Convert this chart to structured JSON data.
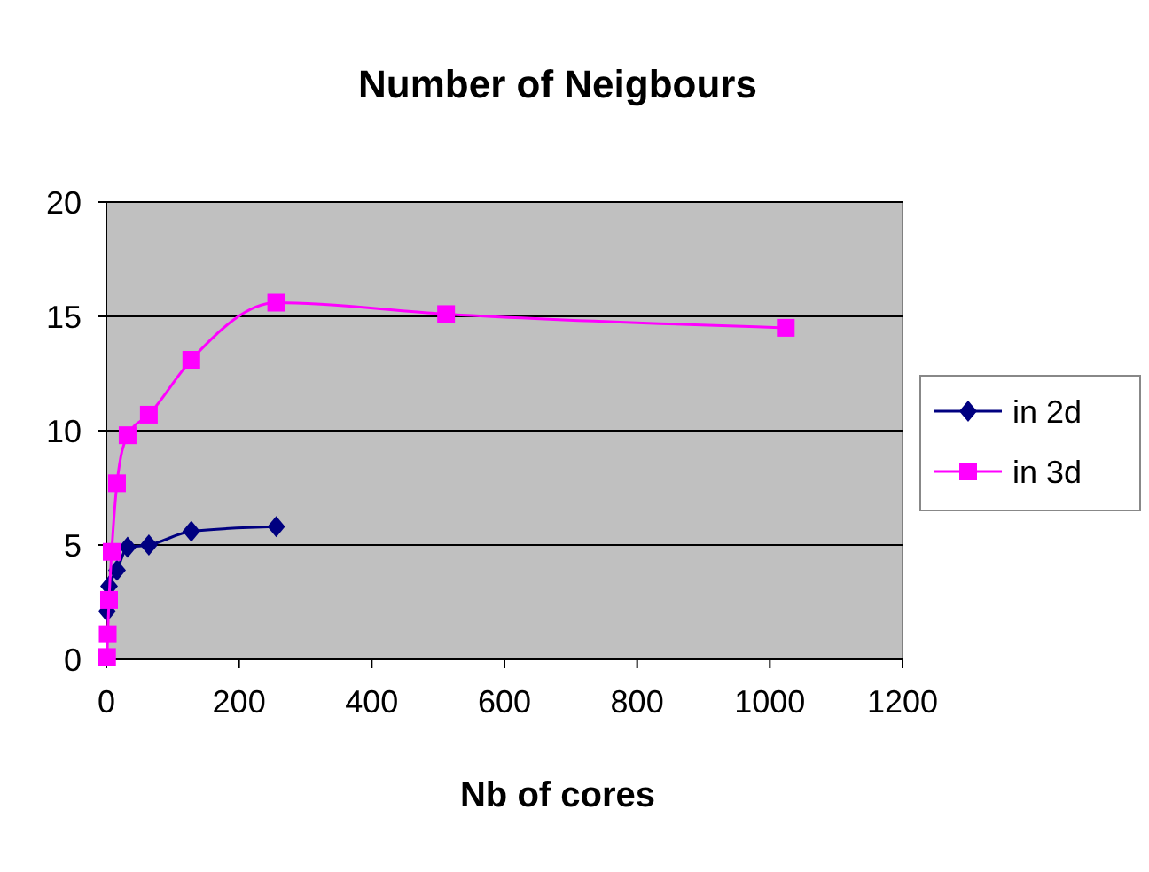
{
  "chart_data": {
    "type": "line",
    "title": "Number of Neigbours",
    "xlabel": "Nb of cores",
    "xlim": [
      0,
      1200
    ],
    "xticks": [
      0,
      200,
      400,
      600,
      800,
      1000,
      1200
    ],
    "ylim": [
      0,
      20
    ],
    "yticks": [
      0,
      5,
      10,
      15,
      20
    ],
    "grid": "y",
    "legend": "right",
    "series": [
      {
        "name": "in 2d",
        "color": "#000080",
        "marker": "diamond",
        "x": [
          1,
          4,
          16,
          32,
          64,
          128,
          256
        ],
        "values": [
          2.1,
          3.2,
          3.9,
          4.9,
          5.0,
          5.6,
          5.8
        ]
      },
      {
        "name": "in 3d",
        "color": "#ff00ff",
        "marker": "square",
        "x": [
          1,
          2,
          4,
          8,
          16,
          32,
          64,
          128,
          256,
          512,
          1024
        ],
        "values": [
          0.1,
          1.1,
          2.6,
          4.7,
          7.7,
          9.8,
          10.7,
          13.1,
          15.6,
          15.1,
          14.5
        ]
      }
    ]
  }
}
